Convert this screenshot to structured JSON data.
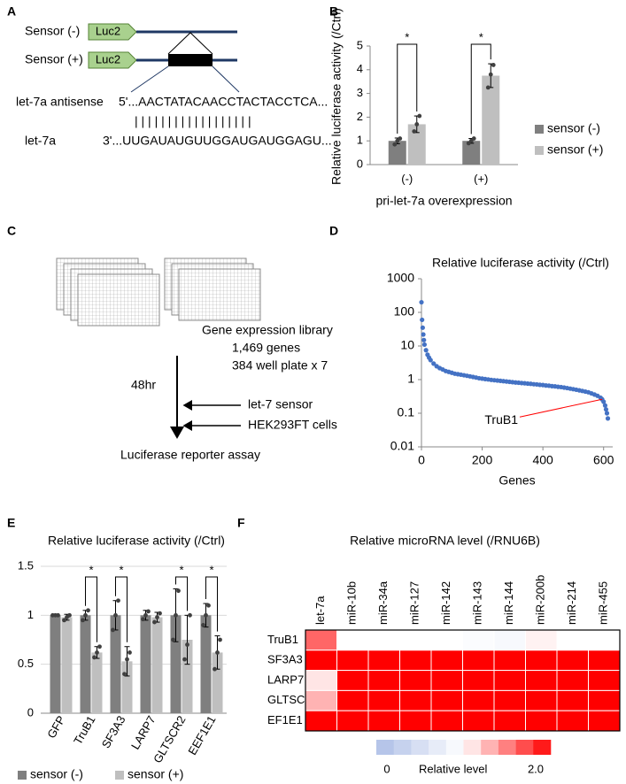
{
  "panel_labels": [
    "A",
    "B",
    "C",
    "D",
    "E",
    "F"
  ],
  "diagram_a": {
    "sensor_minus": "Sensor (-)",
    "sensor_plus": "Sensor (+)",
    "luc2_top": "Luc2",
    "luc2_bottom": "Luc2",
    "antisense_label": "let-7a antisense",
    "antisense_seq": "5'...AACTATACAACCTACTACCTCA...",
    "pairing": "| | | | | | | | | | | | | | | | | |",
    "mirna_label": "let-7a",
    "mirna_seq": "3'...UUGAUAUGUUGGAUGAUGGAGU..."
  },
  "diagram_c": {
    "library": "Gene expression library",
    "genes": "1,469 genes",
    "plates": "384 well plate x 7",
    "time": "48hr",
    "sensor": "let-7 sensor",
    "cells": "HEK293FT cells",
    "assay": "Luciferase reporter assay"
  },
  "chart_data": [
    {
      "type": "bar",
      "ylabel": "Relative luciferase activity (/Ctrl)",
      "xlabel": "pri-let-7a overexpression",
      "categories": [
        "(-)",
        "(+)"
      ],
      "series": [
        {
          "name": "sensor (-)",
          "color": "#7f7f7f",
          "values": [
            1,
            1
          ],
          "errors": [
            0.12,
            0.1
          ],
          "points": [
            [
              0.85,
              1.0,
              1.1
            ],
            [
              0.9,
              1.0,
              1.1
            ]
          ]
        },
        {
          "name": "sensor (+)",
          "color": "#bfbfbf",
          "values": [
            1.7,
            3.75
          ],
          "errors": [
            0.35,
            0.5
          ],
          "points": [
            [
              1.4,
              1.7,
              2.05
            ],
            [
              3.25,
              3.8,
              4.2
            ]
          ]
        }
      ],
      "significance": [
        "*",
        "*"
      ],
      "ylim": [
        0,
        5
      ],
      "yticks": [
        0,
        1,
        2,
        3,
        4,
        5
      ],
      "grid": false,
      "legend": "right"
    },
    {
      "type": "scatter",
      "title": "Relative luciferase activity (/Ctrl)",
      "xlabel": "Genes",
      "x": [
        0,
        2,
        4,
        6,
        8,
        10,
        15,
        20,
        25,
        30,
        40,
        50,
        60,
        70,
        80,
        90,
        100,
        110,
        120,
        130,
        140,
        150,
        160,
        170,
        180,
        190,
        200,
        210,
        220,
        230,
        240,
        250,
        260,
        270,
        280,
        290,
        300,
        310,
        320,
        330,
        340,
        350,
        360,
        370,
        380,
        390,
        400,
        410,
        420,
        430,
        440,
        450,
        460,
        470,
        480,
        490,
        500,
        510,
        520,
        530,
        540,
        550,
        560,
        570,
        580,
        590,
        595,
        600,
        605,
        608,
        611,
        614
      ],
      "values": [
        200,
        60,
        35,
        22,
        15,
        11,
        7.5,
        5.5,
        4.5,
        3.8,
        3.0,
        2.5,
        2.2,
        2.0,
        1.8,
        1.7,
        1.6,
        1.5,
        1.45,
        1.4,
        1.35,
        1.3,
        1.25,
        1.2,
        1.15,
        1.1,
        1.07,
        1.04,
        1.01,
        0.98,
        0.96,
        0.94,
        0.92,
        0.9,
        0.88,
        0.86,
        0.84,
        0.82,
        0.81,
        0.79,
        0.78,
        0.76,
        0.75,
        0.73,
        0.72,
        0.7,
        0.69,
        0.67,
        0.66,
        0.64,
        0.63,
        0.61,
        0.6,
        0.58,
        0.56,
        0.54,
        0.52,
        0.5,
        0.48,
        0.46,
        0.44,
        0.42,
        0.39,
        0.36,
        0.33,
        0.29,
        0.26,
        0.22,
        0.17,
        0.13,
        0.1,
        0.07
      ],
      "color": "#4472c4",
      "xlim": [
        0,
        630
      ],
      "xticks": [
        0,
        200,
        400,
        600
      ],
      "ylim": [
        0.01,
        1000
      ],
      "yticks": [
        0.01,
        0.1,
        1,
        10,
        100,
        1000
      ],
      "log_y": true,
      "annotation": {
        "text": "TruB1",
        "x": 595,
        "y": 0.26,
        "color": "#ff0000"
      }
    },
    {
      "type": "bar",
      "title": "Relative luciferase activity (/Ctrl)",
      "categories": [
        "GFP",
        "TruB1",
        "SF3A3",
        "LARP7",
        "GLTSCR2",
        "EEF1E1"
      ],
      "series": [
        {
          "name": "sensor (-)",
          "color": "#7f7f7f",
          "values": [
            1,
            1,
            1,
            1,
            1,
            1
          ],
          "errors": [
            0.01,
            0.05,
            0.15,
            0.05,
            0.27,
            0.12
          ],
          "points": [
            [
              1,
              1,
              1
            ],
            [
              0.95,
              1.0,
              1.05
            ],
            [
              0.85,
              1.0,
              1.15
            ],
            [
              0.96,
              1.0,
              1.04
            ],
            [
              0.75,
              1.0,
              1.25
            ],
            [
              0.9,
              1.0,
              1.1
            ]
          ]
        },
        {
          "name": "sensor (+)",
          "color": "#bfbfbf",
          "values": [
            0.98,
            0.62,
            0.53,
            0.98,
            0.75,
            0.62
          ],
          "errors": [
            0.03,
            0.06,
            0.15,
            0.05,
            0.25,
            0.17
          ],
          "points": [
            [
              0.95,
              0.98,
              1.0
            ],
            [
              0.57,
              0.62,
              0.68
            ],
            [
              0.4,
              0.55,
              0.62
            ],
            [
              0.93,
              0.98,
              1.02
            ],
            [
              0.55,
              0.7,
              1.0
            ],
            [
              0.45,
              0.62,
              0.75
            ]
          ]
        }
      ],
      "significance": [
        null,
        "*",
        "*",
        null,
        "*",
        "*"
      ],
      "ylim": [
        0,
        1.5
      ],
      "yticks": [
        0,
        0.5,
        1,
        1.5
      ],
      "grid": true,
      "legend": "bottom"
    },
    {
      "type": "heatmap",
      "title": "Relative microRNA level (/RNU6B)",
      "columns": [
        "let-7a",
        "miR-10b",
        "miR-34a",
        "miR-127",
        "miR-142",
        "miR-143",
        "miR-144",
        "miR-200b",
        "miR-214",
        "miR-455"
      ],
      "rows": [
        "TruB1",
        "SF3A3",
        "LARP7",
        "GLTSCR2",
        "EF1E1"
      ],
      "values": [
        [
          1.6,
          1.0,
          1.0,
          1.0,
          1.0,
          0.95,
          0.9,
          1.05,
          1.0,
          1.0
        ],
        [
          2.0,
          2.0,
          2.0,
          2.0,
          2.0,
          2.0,
          2.0,
          2.0,
          2.0,
          2.0
        ],
        [
          1.1,
          2.0,
          2.0,
          2.0,
          2.0,
          2.0,
          2.0,
          2.0,
          2.0,
          2.0
        ],
        [
          1.3,
          2.0,
          2.0,
          2.0,
          2.0,
          2.0,
          2.0,
          2.0,
          2.0,
          2.0
        ],
        [
          2.0,
          2.0,
          2.0,
          2.0,
          2.0,
          2.0,
          2.0,
          2.0,
          2.0,
          2.0
        ]
      ],
      "zlim": [
        0,
        2
      ],
      "zticks": [
        0,
        {
          "value": 2,
          "label": "2.0"
        }
      ],
      "zlabel": "Relative level",
      "colors": {
        "low": "#aebfe6",
        "mid": "#ffffff",
        "high": "#ff0000"
      }
    }
  ]
}
